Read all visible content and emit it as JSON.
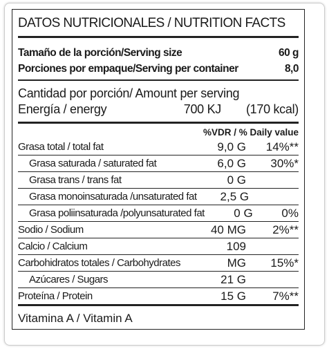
{
  "header": {
    "title": "DATOS NUTRICIONALES / NUTRITION FACTS"
  },
  "serving": [
    {
      "label": "Tamaño de la porción/Serving size",
      "value": "60 g"
    },
    {
      "label": "Porciones por empaque/Serving per container",
      "value": "8,0"
    }
  ],
  "amount_per_serving": "Cantidad por porción/ Amount per serving",
  "energy": {
    "label": "Energía / energy",
    "kj": "700 KJ",
    "kcal": "(170 kcal)"
  },
  "daily_value_header": "%VDR / % Daily value",
  "rows": [
    {
      "name": "Grasa total / total fat",
      "amount": "9,0 G",
      "dv": "14%**",
      "subrows": [
        {
          "name": "Grasa saturada / saturated fat",
          "amount": "6,0 G",
          "dv": "30%*"
        },
        {
          "name": "Grasa trans / trans fat",
          "amount": "0 G"
        },
        {
          "name": "Grasa monoinsaturada /unsaturated fat",
          "amount": "2,5 G"
        },
        {
          "name": "Grasa poliinsaturada /polyunsaturated fat",
          "amount": "0 G",
          "dv": "0%"
        }
      ]
    },
    {
      "name": "Sodio / Sodium",
      "amount": "40 MG",
      "dv": "2%**"
    },
    {
      "name": "Calcio / Calcium",
      "amount": "109"
    },
    {
      "name": "Carbohidratos totales / Carbohydrates",
      "amount": "MG",
      "dv": "15%*",
      "subrows": [
        {
          "name": "Azúcares / Sugars",
          "amount": "21 G"
        }
      ]
    },
    {
      "name": "Proteína / Protein",
      "amount": "15 G",
      "dv": "7%**"
    }
  ],
  "vitamin": "Vitamina A / Vitamin A"
}
